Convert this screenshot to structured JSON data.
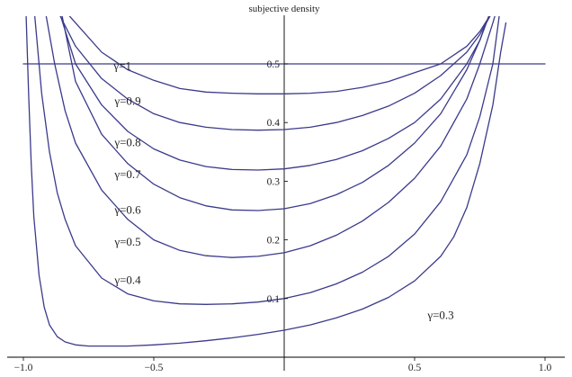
{
  "chart_data": {
    "type": "line",
    "title": "",
    "xlabel": "",
    "ylabel": "subjective density",
    "xlim": [
      -1.0,
      1.0
    ],
    "ylim": [
      0.0,
      0.58
    ],
    "grid": false,
    "line_color": "#3a3a8c",
    "x_ticks": [
      {
        "value": -1.0,
        "label": "−1.0"
      },
      {
        "value": -0.5,
        "label": "−0.5"
      },
      {
        "value": 0.5,
        "label": "0.5"
      },
      {
        "value": 1.0,
        "label": "1.0"
      }
    ],
    "y_ticks": [
      {
        "value": 0.1,
        "label": "0.1"
      },
      {
        "value": 0.2,
        "label": "0.2"
      },
      {
        "value": 0.3,
        "label": "0.3"
      },
      {
        "value": 0.4,
        "label": "0.4"
      },
      {
        "value": 0.5,
        "label": "0.5"
      }
    ],
    "series": [
      {
        "name": "γ=1",
        "label_at": [
          -0.62,
          0.49
        ],
        "x": [
          -1.0,
          1.0
        ],
        "y": [
          0.5,
          0.5
        ]
      },
      {
        "name": "γ=0.9",
        "label_at": [
          -0.6,
          0.43
        ],
        "x": [
          -0.9,
          -0.8,
          -0.7,
          -0.6,
          -0.5,
          -0.4,
          -0.3,
          -0.2,
          -0.1,
          0.0,
          0.1,
          0.2,
          0.3,
          0.4,
          0.5,
          0.6,
          0.7,
          0.75,
          0.8
        ],
        "y": [
          0.62,
          0.57,
          0.52,
          0.49,
          0.472,
          0.458,
          0.452,
          0.45,
          0.449,
          0.449,
          0.45,
          0.453,
          0.46,
          0.47,
          0.485,
          0.5,
          0.53,
          0.555,
          0.59
        ]
      },
      {
        "name": "γ=0.8",
        "label_at": [
          -0.6,
          0.36
        ],
        "x": [
          -0.88,
          -0.8,
          -0.7,
          -0.6,
          -0.5,
          -0.4,
          -0.3,
          -0.2,
          -0.1,
          0.0,
          0.1,
          0.2,
          0.3,
          0.4,
          0.5,
          0.6,
          0.7,
          0.75,
          0.8
        ],
        "y": [
          0.6,
          0.53,
          0.475,
          0.44,
          0.415,
          0.4,
          0.392,
          0.388,
          0.387,
          0.388,
          0.392,
          0.4,
          0.412,
          0.428,
          0.45,
          0.48,
          0.52,
          0.55,
          0.59
        ]
      },
      {
        "name": "γ=0.7",
        "label_at": [
          -0.6,
          0.305
        ],
        "x": [
          -0.87,
          -0.8,
          -0.7,
          -0.6,
          -0.5,
          -0.4,
          -0.3,
          -0.2,
          -0.1,
          0.0,
          0.1,
          0.2,
          0.3,
          0.4,
          0.5,
          0.6,
          0.7,
          0.75,
          0.8
        ],
        "y": [
          0.6,
          0.5,
          0.43,
          0.385,
          0.355,
          0.336,
          0.325,
          0.32,
          0.319,
          0.321,
          0.327,
          0.337,
          0.352,
          0.373,
          0.4,
          0.44,
          0.5,
          0.54,
          0.6
        ]
      },
      {
        "name": "γ=0.6",
        "label_at": [
          -0.6,
          0.245
        ],
        "x": [
          -0.86,
          -0.8,
          -0.7,
          -0.6,
          -0.5,
          -0.4,
          -0.3,
          -0.2,
          -0.1,
          0.0,
          0.1,
          0.2,
          0.3,
          0.4,
          0.5,
          0.6,
          0.7,
          0.75,
          0.8
        ],
        "y": [
          0.6,
          0.47,
          0.38,
          0.33,
          0.295,
          0.272,
          0.258,
          0.251,
          0.25,
          0.253,
          0.262,
          0.277,
          0.298,
          0.327,
          0.365,
          0.415,
          0.49,
          0.54,
          0.6
        ]
      },
      {
        "name": "γ=0.5",
        "label_at": [
          -0.6,
          0.19
        ],
        "x": [
          -0.92,
          -0.88,
          -0.84,
          -0.8,
          -0.7,
          -0.6,
          -0.5,
          -0.4,
          -0.3,
          -0.2,
          -0.1,
          0.0,
          0.1,
          0.2,
          0.3,
          0.4,
          0.5,
          0.6,
          0.7,
          0.75,
          0.8,
          0.82
        ],
        "y": [
          0.6,
          0.5,
          0.42,
          0.365,
          0.285,
          0.235,
          0.2,
          0.182,
          0.173,
          0.17,
          0.172,
          0.178,
          0.19,
          0.208,
          0.232,
          0.264,
          0.305,
          0.36,
          0.44,
          0.5,
          0.57,
          0.6
        ]
      },
      {
        "name": "γ=0.4",
        "label_at": [
          -0.6,
          0.125
        ],
        "x": [
          -0.96,
          -0.93,
          -0.9,
          -0.87,
          -0.84,
          -0.8,
          -0.7,
          -0.6,
          -0.5,
          -0.4,
          -0.3,
          -0.2,
          -0.1,
          0.0,
          0.1,
          0.2,
          0.3,
          0.4,
          0.5,
          0.6,
          0.7,
          0.75,
          0.8,
          0.83
        ],
        "y": [
          0.6,
          0.45,
          0.35,
          0.28,
          0.235,
          0.19,
          0.135,
          0.108,
          0.096,
          0.091,
          0.09,
          0.091,
          0.094,
          0.1,
          0.11,
          0.125,
          0.145,
          0.172,
          0.21,
          0.265,
          0.345,
          0.41,
          0.5,
          0.6
        ]
      },
      {
        "name": "γ=0.3",
        "label_at": [
          0.6,
          0.065
        ],
        "x": [
          -0.99,
          -0.98,
          -0.97,
          -0.96,
          -0.94,
          -0.92,
          -0.9,
          -0.87,
          -0.84,
          -0.8,
          -0.75,
          -0.7,
          -0.6,
          -0.5,
          -0.4,
          -0.3,
          -0.2,
          -0.1,
          0.0,
          0.1,
          0.2,
          0.3,
          0.4,
          0.5,
          0.6,
          0.65,
          0.7,
          0.75,
          0.8,
          0.83,
          0.85
        ],
        "y": [
          0.59,
          0.45,
          0.33,
          0.24,
          0.14,
          0.085,
          0.055,
          0.035,
          0.026,
          0.021,
          0.019,
          0.019,
          0.019,
          0.021,
          0.024,
          0.028,
          0.033,
          0.039,
          0.046,
          0.055,
          0.067,
          0.082,
          0.102,
          0.13,
          0.172,
          0.205,
          0.255,
          0.33,
          0.43,
          0.52,
          0.57
        ]
      }
    ]
  }
}
